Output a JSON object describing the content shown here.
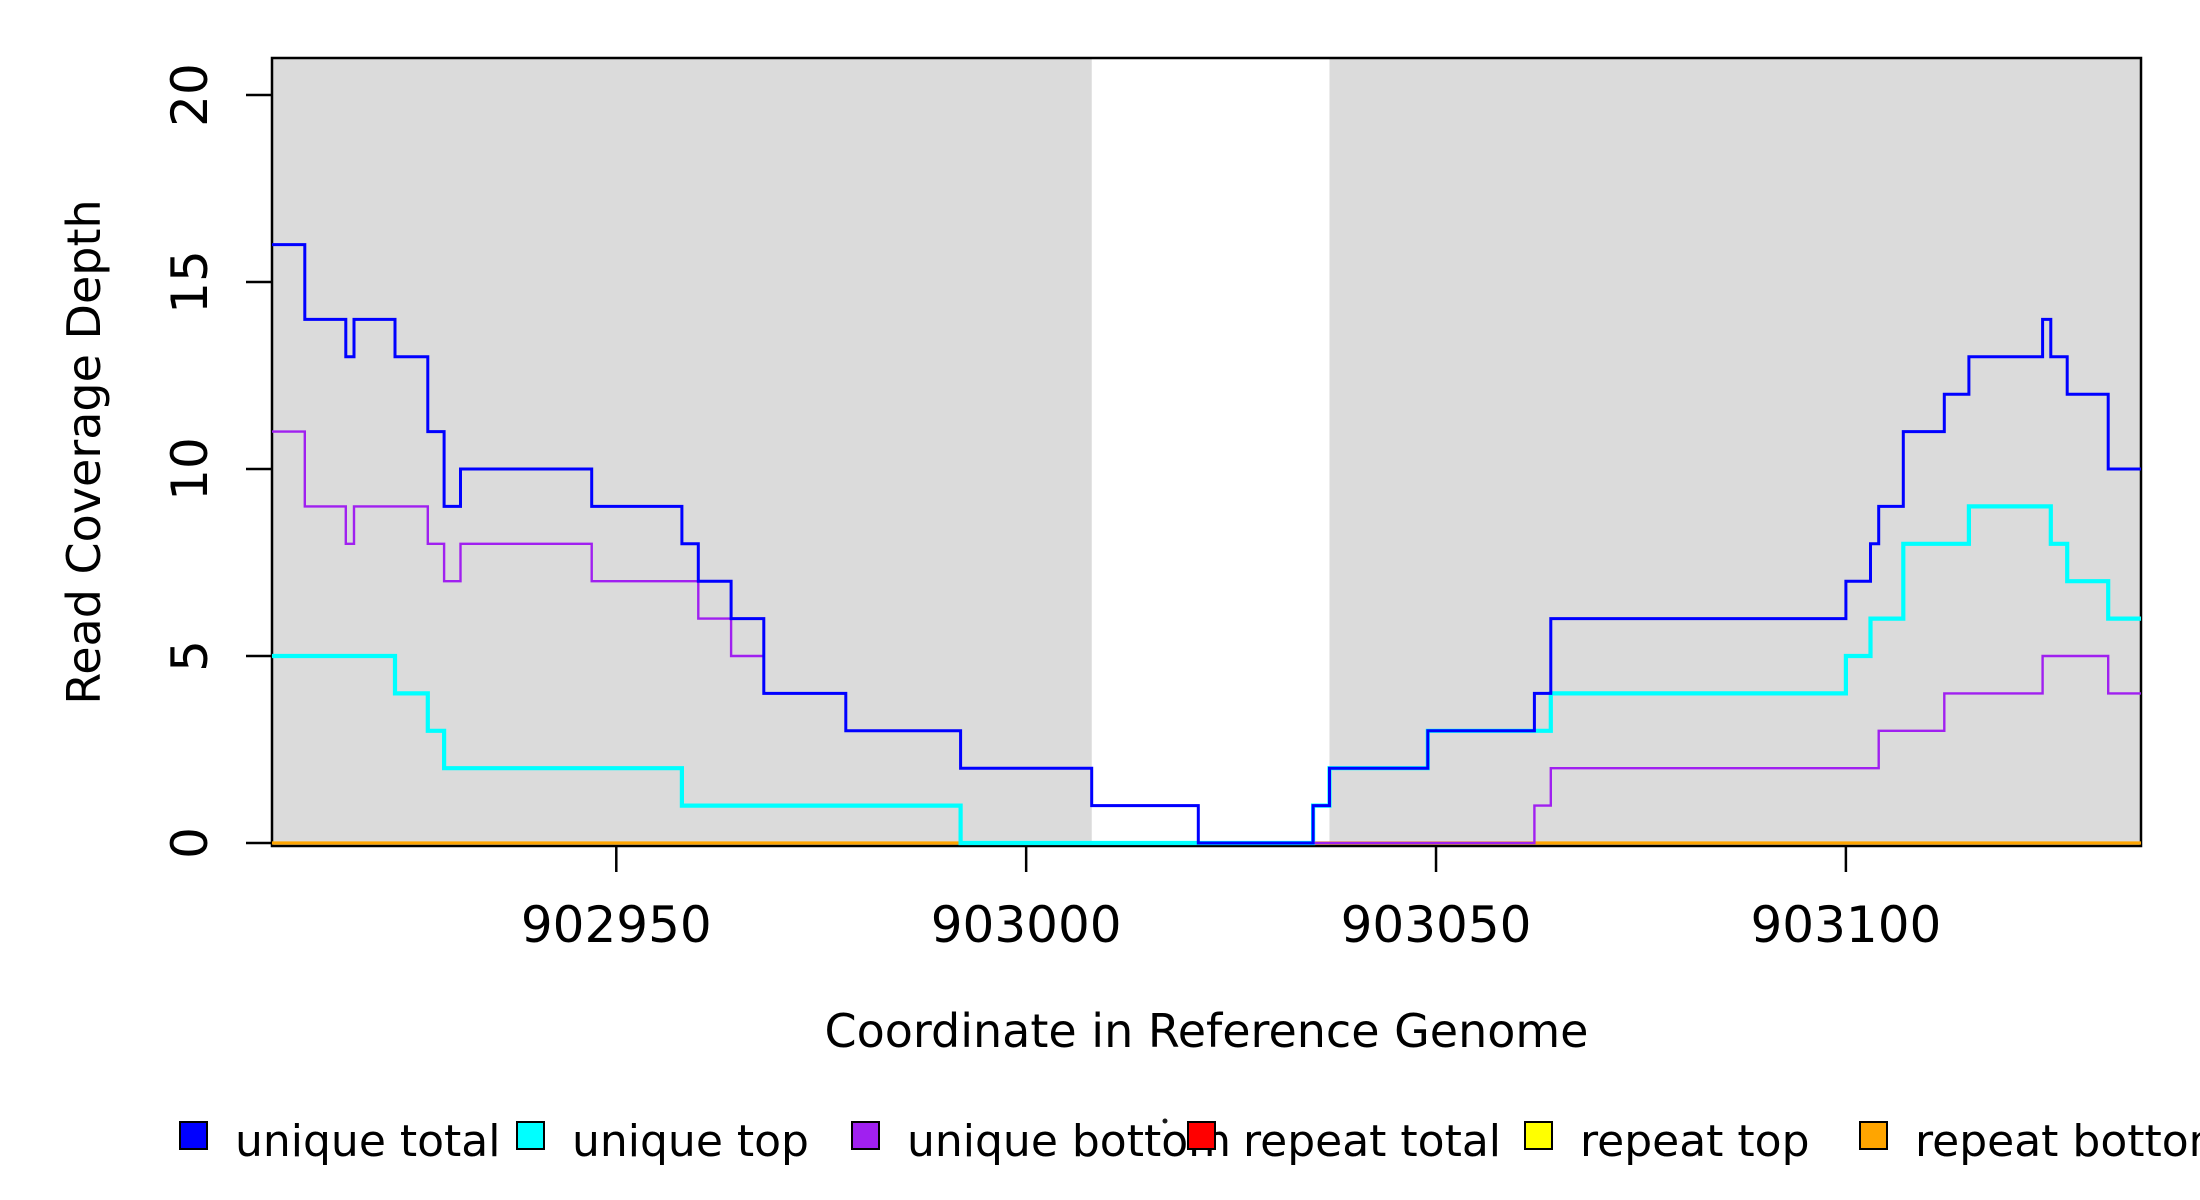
{
  "chart_data": {
    "type": "line",
    "subtype": "step-coverage",
    "title": "",
    "xlabel": "Coordinate in Reference Genome",
    "ylabel": "Read Coverage Depth",
    "x_ticks": [
      902950,
      903000,
      903050,
      903100
    ],
    "x_tick_labels": [
      "902950",
      "903000",
      "903050",
      "903100"
    ],
    "y_ticks": [
      0,
      5,
      10,
      15,
      20
    ],
    "y_tick_labels": [
      "0",
      "5",
      "10",
      "15",
      "20"
    ],
    "xlim": [
      902908,
      903136
    ],
    "ylim": [
      0,
      21
    ],
    "grid": false,
    "background_shading": {
      "color": "#DBDBDB",
      "regions": [
        {
          "start": 902908,
          "end": 903008
        },
        {
          "start": 903037,
          "end": 903136
        }
      ]
    },
    "series": [
      {
        "name": "repeat total",
        "color": "#FF0000",
        "width": 2.2,
        "points": [
          [
            902908,
            0
          ],
          [
            903136,
            0
          ]
        ]
      },
      {
        "name": "repeat top",
        "color": "#FFFF00",
        "width": 2.2,
        "points": [
          [
            902908,
            0
          ],
          [
            903136,
            0
          ]
        ]
      },
      {
        "name": "repeat bottom",
        "color": "#FFA500",
        "width": 3.2,
        "points": [
          [
            902908,
            0
          ],
          [
            903136,
            0
          ]
        ]
      },
      {
        "name": "unique top",
        "color": "#00FFFF",
        "width": 4.2,
        "points": [
          [
            902908,
            5
          ],
          [
            902923,
            4
          ],
          [
            902927,
            3
          ],
          [
            902929,
            2
          ],
          [
            902958,
            1
          ],
          [
            902992,
            0
          ],
          [
            903035,
            1
          ],
          [
            903037,
            2
          ],
          [
            903049,
            3
          ],
          [
            903064,
            4
          ],
          [
            903100,
            5
          ],
          [
            903103,
            6
          ],
          [
            903107,
            8
          ],
          [
            903115,
            9
          ],
          [
            903125,
            8
          ],
          [
            903127,
            7
          ],
          [
            903132,
            6
          ],
          [
            903136,
            6
          ]
        ]
      },
      {
        "name": "unique bottom",
        "color": "#A020F0",
        "width": 2.4,
        "points": [
          [
            902908,
            11
          ],
          [
            902912,
            9
          ],
          [
            902917,
            8
          ],
          [
            902918,
            9
          ],
          [
            902927,
            8
          ],
          [
            902929,
            7
          ],
          [
            902931,
            8
          ],
          [
            902947,
            7
          ],
          [
            902960,
            6
          ],
          [
            902964,
            5
          ],
          [
            902968,
            4
          ],
          [
            902978,
            3
          ],
          [
            902992,
            2
          ],
          [
            903008,
            1
          ],
          [
            903021,
            0
          ],
          [
            903062,
            1
          ],
          [
            903064,
            2
          ],
          [
            903104,
            3
          ],
          [
            903112,
            4
          ],
          [
            903124,
            5
          ],
          [
            903132,
            4
          ],
          [
            903136,
            4
          ]
        ]
      },
      {
        "name": "unique total",
        "color": "#0000FF",
        "width": 3.0,
        "points": [
          [
            902908,
            16
          ],
          [
            902912,
            14
          ],
          [
            902917,
            13
          ],
          [
            902918,
            14
          ],
          [
            902923,
            13
          ],
          [
            902927,
            11
          ],
          [
            902929,
            9
          ],
          [
            902931,
            10
          ],
          [
            902947,
            9
          ],
          [
            902958,
            8
          ],
          [
            902960,
            7
          ],
          [
            902964,
            6
          ],
          [
            902968,
            4
          ],
          [
            902978,
            3
          ],
          [
            902992,
            2
          ],
          [
            903008,
            1
          ],
          [
            903021,
            0
          ],
          [
            903035,
            1
          ],
          [
            903037,
            2
          ],
          [
            903049,
            3
          ],
          [
            903062,
            4
          ],
          [
            903064,
            6
          ],
          [
            903100,
            7
          ],
          [
            903103,
            8
          ],
          [
            903104,
            9
          ],
          [
            903107,
            11
          ],
          [
            903112,
            12
          ],
          [
            903115,
            13
          ],
          [
            903124,
            14
          ],
          [
            903125,
            13
          ],
          [
            903127,
            12
          ],
          [
            903132,
            10
          ],
          [
            903136,
            10
          ]
        ]
      }
    ],
    "legend": [
      {
        "label": "unique total",
        "color": "#0000FF"
      },
      {
        "label": "unique top",
        "color": "#00FFFF"
      },
      {
        "label": "unique bottom",
        "color": "#A020F0"
      },
      {
        "label": "repeat total",
        "color": "#FF0000"
      },
      {
        "label": "repeat top",
        "color": "#FFFF00"
      },
      {
        "label": "repeat bottom",
        "color": "#FFA500"
      }
    ],
    "legend_position": "bottom"
  }
}
